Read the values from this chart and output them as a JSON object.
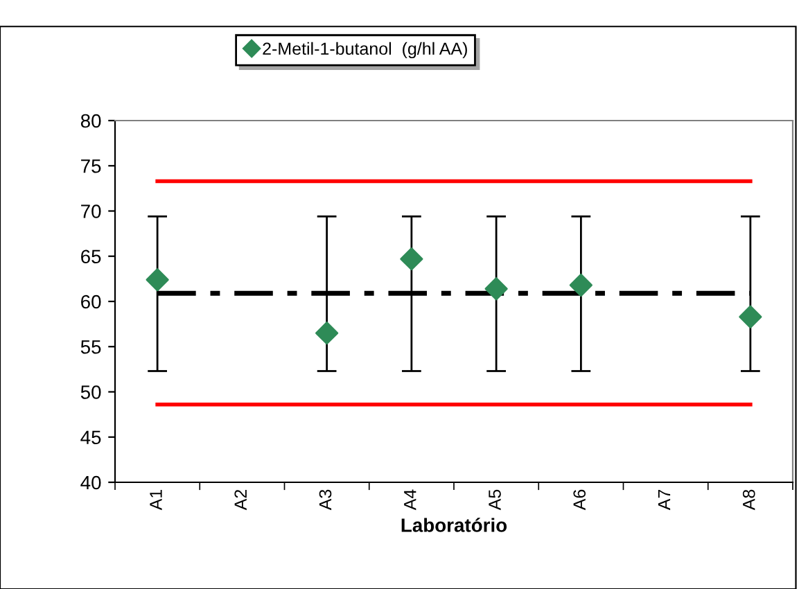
{
  "chart_data": {
    "type": "scatter",
    "xlabel": "Laboratório",
    "categories": [
      "A1",
      "A2",
      "A3",
      "A4",
      "A5",
      "A6",
      "A7",
      "A8"
    ],
    "series": [
      {
        "name": "2-Metil-1-butanol  (g/hl AA)",
        "color": "#2e8b57",
        "marker": "diamond",
        "values": [
          62.4,
          null,
          56.5,
          64.7,
          61.4,
          61.8,
          null,
          58.3
        ],
        "errors": [
          [
            52.3,
            69.4
          ],
          null,
          [
            52.3,
            69.4
          ],
          [
            52.3,
            69.4
          ],
          [
            52.3,
            69.4
          ],
          [
            52.3,
            69.4
          ],
          null,
          [
            52.3,
            69.4
          ]
        ]
      },
      {
        "type": "line",
        "color": "#ff0000",
        "line_style": "solid",
        "values": [
          73.3,
          73.3,
          73.3,
          73.3,
          73.3,
          73.3,
          73.3,
          73.3
        ]
      },
      {
        "type": "line",
        "color": "#ff0000",
        "line_style": "solid",
        "values": [
          48.6,
          48.6,
          48.6,
          48.6,
          48.6,
          48.6,
          48.6,
          48.6
        ]
      },
      {
        "type": "line",
        "color": "#000000",
        "line_style": "dashdot",
        "values": [
          60.9,
          60.9,
          60.9,
          60.9,
          60.9,
          60.9,
          60.9,
          60.9
        ]
      }
    ],
    "ylim": [
      40,
      80
    ],
    "yticks": [
      40,
      45,
      50,
      55,
      60,
      65,
      70,
      75,
      80
    ],
    "grid": false,
    "legend": "top"
  }
}
